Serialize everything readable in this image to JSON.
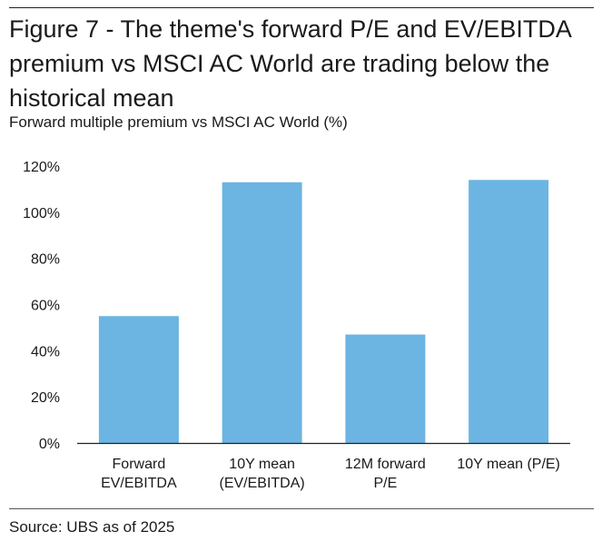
{
  "figure": {
    "title": "Figure 7 - The theme's forward P/E and EV/EBITDA premium vs MSCI AC World are trading below the historical mean",
    "subtitle": "Forward multiple premium vs MSCI AC World (%)",
    "source": "Source: UBS as of 2025"
  },
  "colors": {
    "bar": "#6cb4e2",
    "axis": "#222222",
    "text": "#1a1a1a"
  },
  "chart_data": {
    "type": "bar",
    "title": "Forward multiple premium vs MSCI AC World (%)",
    "xlabel": "",
    "ylabel": "",
    "categories": [
      [
        "Forward",
        "EV/EBITDA"
      ],
      [
        "10Y mean",
        "(EV/EBITDA)"
      ],
      [
        "12M forward",
        "P/E"
      ],
      [
        "10Y mean (P/E)"
      ]
    ],
    "series": [
      {
        "name": "Premium vs MSCI AC World",
        "values": [
          55,
          113,
          47,
          114
        ]
      }
    ],
    "ylim": [
      0,
      120
    ],
    "yticks": [
      0,
      20,
      40,
      60,
      80,
      100,
      120
    ],
    "ytick_suffix": "%",
    "grid": false,
    "legend": "none"
  }
}
